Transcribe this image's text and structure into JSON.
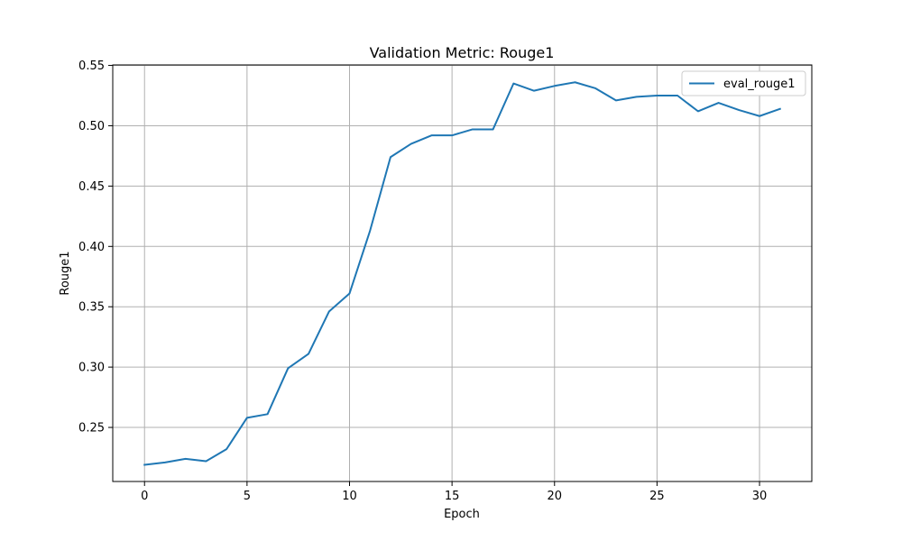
{
  "chart_data": {
    "type": "line",
    "title": "Validation Metric: Rouge1",
    "xlabel": "Epoch",
    "ylabel": "Rouge1",
    "xlim": [
      -1.55,
      32.55
    ],
    "ylim": [
      0.2052,
      0.5504
    ],
    "x_ticks": [
      0,
      5,
      10,
      15,
      20,
      25,
      30
    ],
    "x_tick_labels": [
      "0",
      "5",
      "10",
      "15",
      "20",
      "25",
      "30"
    ],
    "y_ticks": [
      0.25,
      0.3,
      0.35,
      0.4,
      0.45,
      0.5,
      0.55
    ],
    "y_tick_labels": [
      "0.25",
      "0.30",
      "0.35",
      "0.40",
      "0.45",
      "0.50",
      "0.55"
    ],
    "grid": true,
    "legend_position": "top-right",
    "series": [
      {
        "name": "eval_rouge1",
        "color": "#1f77b4",
        "x": [
          0,
          1,
          2,
          3,
          4,
          5,
          6,
          7,
          8,
          9,
          10,
          11,
          12,
          13,
          14,
          15,
          16,
          17,
          18,
          19,
          20,
          21,
          22,
          23,
          24,
          25,
          26,
          27,
          28,
          29,
          30,
          31
        ],
        "y": [
          0.219,
          0.221,
          0.224,
          0.222,
          0.232,
          0.258,
          0.261,
          0.299,
          0.311,
          0.346,
          0.361,
          0.413,
          0.474,
          0.485,
          0.492,
          0.492,
          0.497,
          0.497,
          0.535,
          0.529,
          0.533,
          0.536,
          0.531,
          0.521,
          0.524,
          0.525,
          0.525,
          0.512,
          0.519,
          0.513,
          0.508,
          0.514
        ]
      }
    ]
  }
}
